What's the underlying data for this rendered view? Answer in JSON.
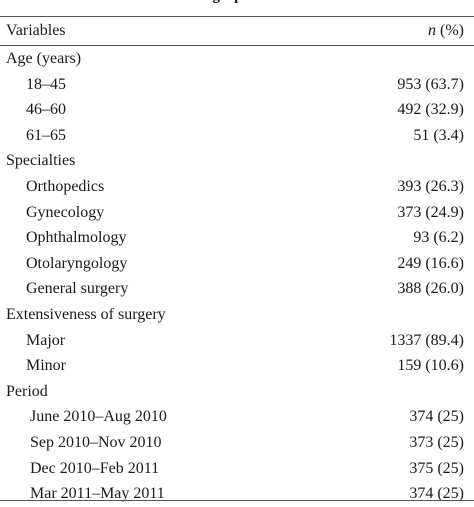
{
  "caption_fragment": "graphic",
  "header": {
    "variables_label": "Variables",
    "n_label": "n",
    "pct_label": " (%)"
  },
  "rows": [
    {
      "kind": "section",
      "label": "Age (years)",
      "value": ""
    },
    {
      "kind": "item",
      "label": "18–45",
      "value": "953 (63.7)"
    },
    {
      "kind": "item",
      "label": "46–60",
      "value": "492 (32.9)"
    },
    {
      "kind": "item",
      "label": "61–65",
      "value": "51 (3.4)"
    },
    {
      "kind": "section",
      "label": "Specialties",
      "value": ""
    },
    {
      "kind": "item",
      "label": "Orthopedics",
      "value": "393 (26.3)"
    },
    {
      "kind": "item",
      "label": "Gynecology",
      "value": "373 (24.9)"
    },
    {
      "kind": "item",
      "label": "Ophthalmology",
      "value": "93 (6.2)"
    },
    {
      "kind": "item",
      "label": "Otolaryngology",
      "value": "249 (16.6)"
    },
    {
      "kind": "item",
      "label": "General surgery",
      "value": "388 (26.0)"
    },
    {
      "kind": "section",
      "label": "Extensiveness of surgery",
      "value": ""
    },
    {
      "kind": "item",
      "label": "Major",
      "value": "1337 (89.4)"
    },
    {
      "kind": "item",
      "label": "Minor",
      "value": "159 (10.6)"
    },
    {
      "kind": "section",
      "label": "Period",
      "value": ""
    },
    {
      "kind": "sub",
      "label": "June 2010–Aug 2010",
      "value": "374 (25)"
    },
    {
      "kind": "sub",
      "label": "Sep 2010–Nov 2010",
      "value": "373 (25)"
    },
    {
      "kind": "sub",
      "label": "Dec 2010–Feb 2011",
      "value": "375 (25)"
    },
    {
      "kind": "sub",
      "label": "Mar 2011–May 2011",
      "value": "374 (25)"
    }
  ]
}
